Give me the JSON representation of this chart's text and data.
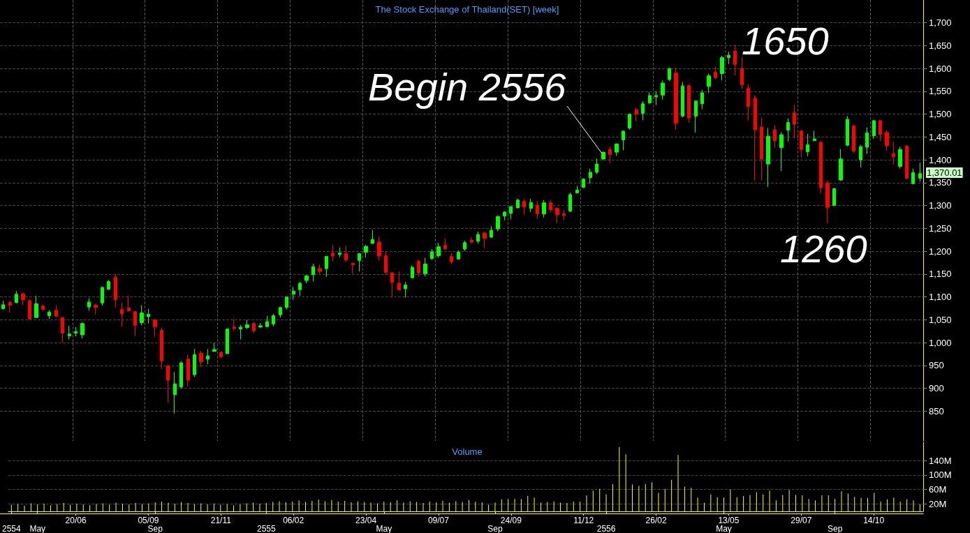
{
  "chart_data": [
    {
      "type": "candlestick",
      "title": "The Stock Exchange of Thailand(SET) [week]",
      "categories": [
        null,
        null,
        null,
        null,
        null,
        null,
        null,
        null,
        null,
        null,
        null,
        "20/06",
        null,
        null,
        null,
        null,
        null,
        null,
        null,
        null,
        null,
        null,
        "05/09",
        null,
        null,
        null,
        null,
        null,
        null,
        null,
        null,
        null,
        null,
        "21/11",
        null,
        null,
        null,
        null,
        null,
        null,
        null,
        null,
        null,
        null,
        "06/02",
        null,
        null,
        null,
        null,
        null,
        null,
        null,
        null,
        null,
        null,
        "23/04",
        null,
        null,
        null,
        null,
        null,
        null,
        null,
        null,
        null,
        null,
        "09/07",
        null,
        null,
        null,
        null,
        null,
        null,
        null,
        null,
        null,
        null,
        "24/09",
        null,
        null,
        null,
        null,
        null,
        null,
        null,
        null,
        null,
        null,
        "11/12",
        null,
        null,
        null,
        null,
        null,
        null,
        null,
        null,
        null,
        null,
        "26/02",
        null,
        null,
        null,
        null,
        null,
        null,
        null,
        null,
        null,
        null,
        "13/05",
        null,
        null,
        null,
        null,
        null,
        null,
        null,
        null,
        null,
        null,
        "29/07",
        null,
        null,
        null,
        null,
        null,
        null,
        null,
        null,
        null,
        null,
        "14/10",
        null,
        null,
        null,
        null,
        null,
        null,
        null
      ],
      "ohlc": [
        [
          1074,
          1092,
          1074,
          1083
        ],
        [
          1088,
          1091,
          1066,
          1082
        ],
        [
          1088,
          1113,
          1086,
          1106
        ],
        [
          1107,
          1109,
          1082,
          1094
        ],
        [
          1092,
          1095,
          1050,
          1052
        ],
        [
          1055,
          1103,
          1055,
          1085
        ],
        [
          1080,
          1083,
          1070,
          1073
        ],
        [
          1059,
          1071,
          1052,
          1067
        ],
        [
          1071,
          1082,
          1056,
          1058
        ],
        [
          1055,
          1056,
          1000,
          1021
        ],
        [
          1015,
          1037,
          1007,
          1019
        ],
        [
          1021,
          1034,
          1014,
          1024
        ],
        [
          1017,
          1044,
          1009,
          1042
        ],
        [
          1078,
          1097,
          1070,
          1089
        ],
        [
          1082,
          1085,
          1061,
          1077
        ],
        [
          1087,
          1122,
          1081,
          1121
        ],
        [
          1117,
          1137,
          1115,
          1134
        ],
        [
          1143,
          1149,
          1077,
          1094
        ],
        [
          1073,
          1088,
          1035,
          1063
        ],
        [
          1076,
          1103,
          1067,
          1070
        ],
        [
          1068,
          1070,
          1014,
          1038
        ],
        [
          1044,
          1082,
          1038,
          1065
        ],
        [
          1057,
          1074,
          1042,
          1062
        ],
        [
          1049,
          1052,
          1012,
          1035
        ],
        [
          1027,
          1033,
          942,
          960
        ],
        [
          949,
          950,
          868,
          918
        ],
        [
          886,
          936,
          845,
          910
        ],
        [
          903,
          959,
          899,
          956
        ],
        [
          964,
          974,
          904,
          918
        ],
        [
          930,
          986,
          925,
          974
        ],
        [
          977,
          982,
          946,
          958
        ],
        [
          964,
          986,
          953,
          971
        ],
        [
          981,
          1000,
          980,
          985
        ],
        [
          979,
          981,
          966,
          969
        ],
        [
          976,
          1031,
          975,
          1030
        ],
        [
          1034,
          1052,
          1026,
          1031
        ],
        [
          1030,
          1039,
          1007,
          1034
        ],
        [
          1033,
          1050,
          1030,
          1039
        ],
        [
          1042,
          1044,
          1021,
          1026
        ],
        [
          1034,
          1043,
          1033,
          1037
        ],
        [
          1035,
          1059,
          1034,
          1046
        ],
        [
          1041,
          1063,
          1036,
          1059
        ],
        [
          1061,
          1079,
          1055,
          1077
        ],
        [
          1077,
          1100,
          1073,
          1100
        ],
        [
          1106,
          1122,
          1094,
          1113
        ],
        [
          1116,
          1133,
          1103,
          1130
        ],
        [
          1136,
          1148,
          1130,
          1146
        ],
        [
          1149,
          1173,
          1134,
          1166
        ],
        [
          1162,
          1171,
          1150,
          1156
        ],
        [
          1162,
          1189,
          1144,
          1189
        ],
        [
          1196,
          1214,
          1178,
          1190
        ],
        [
          1193,
          1208,
          1187,
          1196
        ],
        [
          1195,
          1213,
          1177,
          1181
        ],
        [
          1174,
          1175,
          1151,
          1170
        ],
        [
          1180,
          1195,
          1156,
          1195
        ],
        [
          1198,
          1214,
          1186,
          1211
        ],
        [
          1217,
          1247,
          1217,
          1226
        ],
        [
          1220,
          1232,
          1180,
          1190
        ],
        [
          1190,
          1201,
          1148,
          1154
        ],
        [
          1153,
          1153,
          1100,
          1132
        ],
        [
          1130,
          1156,
          1115,
          1115
        ],
        [
          1118,
          1133,
          1099,
          1126
        ],
        [
          1142,
          1169,
          1142,
          1165
        ],
        [
          1178,
          1181,
          1144,
          1153
        ],
        [
          1151,
          1186,
          1145,
          1172
        ],
        [
          1184,
          1205,
          1181,
          1199
        ],
        [
          1190,
          1219,
          1186,
          1210
        ],
        [
          1213,
          1228,
          1204,
          1205
        ],
        [
          1189,
          1196,
          1172,
          1177
        ],
        [
          1183,
          1202,
          1183,
          1198
        ],
        [
          1205,
          1223,
          1201,
          1219
        ],
        [
          1224,
          1231,
          1217,
          1220
        ],
        [
          1222,
          1243,
          1217,
          1237
        ],
        [
          1240,
          1243,
          1207,
          1228
        ],
        [
          1231,
          1255,
          1229,
          1246
        ],
        [
          1249,
          1279,
          1244,
          1276
        ],
        [
          1277,
          1288,
          1268,
          1286
        ],
        [
          1283,
          1298,
          1270,
          1298
        ],
        [
          1295,
          1315,
          1295,
          1312
        ],
        [
          1309,
          1315,
          1280,
          1297
        ],
        [
          1294,
          1315,
          1286,
          1307
        ],
        [
          1301,
          1310,
          1271,
          1282
        ],
        [
          1282,
          1312,
          1274,
          1306
        ],
        [
          1307,
          1313,
          1285,
          1291
        ],
        [
          1294,
          1297,
          1262,
          1280
        ],
        [
          1282,
          1291,
          1268,
          1279
        ],
        [
          1288,
          1328,
          1286,
          1324
        ],
        [
          1328,
          1343,
          1327,
          1334
        ],
        [
          1340,
          1360,
          1339,
          1358
        ],
        [
          1361,
          1381,
          1348,
          1373
        ],
        [
          1373,
          1403,
          1369,
          1391
        ],
        [
          1402,
          1417,
          1400,
          1417
        ],
        [
          1423,
          1429,
          1393,
          1412
        ],
        [
          1417,
          1436,
          1409,
          1435
        ],
        [
          1444,
          1464,
          1421,
          1463
        ],
        [
          1470,
          1500,
          1466,
          1500
        ],
        [
          1510,
          1514,
          1484,
          1500
        ],
        [
          1502,
          1529,
          1487,
          1523
        ],
        [
          1525,
          1548,
          1522,
          1541
        ],
        [
          1538,
          1551,
          1520,
          1541
        ],
        [
          1542,
          1574,
          1532,
          1568
        ],
        [
          1576,
          1601,
          1573,
          1600
        ],
        [
          1590,
          1602,
          1466,
          1480
        ],
        [
          1496,
          1571,
          1493,
          1562
        ],
        [
          1563,
          1565,
          1481,
          1492
        ],
        [
          1496,
          1530,
          1460,
          1529
        ],
        [
          1523,
          1553,
          1511,
          1547
        ],
        [
          1561,
          1589,
          1547,
          1584
        ],
        [
          1592,
          1604,
          1577,
          1580
        ],
        [
          1589,
          1628,
          1574,
          1624
        ],
        [
          1624,
          1637,
          1610,
          1629
        ],
        [
          1638,
          1652,
          1585,
          1609
        ],
        [
          1600,
          1626,
          1556,
          1564
        ],
        [
          1557,
          1566,
          1486,
          1517
        ],
        [
          1535,
          1541,
          1354,
          1466
        ],
        [
          1472,
          1493,
          1355,
          1402
        ],
        [
          1391,
          1470,
          1341,
          1452
        ],
        [
          1466,
          1476,
          1426,
          1442
        ],
        [
          1427,
          1461,
          1376,
          1455
        ],
        [
          1465,
          1491,
          1440,
          1482
        ],
        [
          1503,
          1520,
          1447,
          1478
        ],
        [
          1463,
          1466,
          1405,
          1423
        ],
        [
          1418,
          1457,
          1408,
          1433
        ],
        [
          1442,
          1464,
          1442,
          1446
        ],
        [
          1439,
          1440,
          1327,
          1339
        ],
        [
          1349,
          1355,
          1261,
          1296
        ],
        [
          1300,
          1339,
          1300,
          1337
        ],
        [
          1356,
          1424,
          1354,
          1402
        ],
        [
          1432,
          1496,
          1430,
          1489
        ],
        [
          1475,
          1475,
          1416,
          1419
        ],
        [
          1400,
          1433,
          1383,
          1429
        ],
        [
          1428,
          1471,
          1413,
          1459
        ],
        [
          1453,
          1487,
          1446,
          1486
        ],
        [
          1486,
          1487,
          1441,
          1456
        ],
        [
          1460,
          1465,
          1420,
          1431
        ],
        [
          1414,
          1440,
          1390,
          1407
        ],
        [
          1386,
          1429,
          1381,
          1423
        ],
        [
          1430,
          1432,
          1357,
          1360
        ],
        [
          1348,
          1381,
          1347,
          1372
        ],
        [
          1360,
          1394,
          1353,
          1370.01
        ]
      ],
      "ylim": [
        785,
        1750
      ],
      "yticks": [
        850,
        900,
        950,
        {
          "value": 1000,
          "label": "1,000"
        },
        {
          "value": 1050,
          "label": "1,050"
        },
        {
          "value": 1100,
          "label": "1,100"
        },
        {
          "value": 1150,
          "label": "1,150"
        },
        {
          "value": 1200,
          "label": "1,200"
        },
        {
          "value": 1250,
          "label": "1,250"
        },
        {
          "value": 1300,
          "label": "1,300"
        },
        {
          "value": 1350,
          "label": "1,350"
        },
        {
          "value": 1400,
          "label": "1,400"
        },
        {
          "value": 1450,
          "label": "1,450"
        },
        {
          "value": 1500,
          "label": "1,500"
        },
        {
          "value": 1550,
          "label": "1,550"
        },
        {
          "value": 1600,
          "label": "1,600"
        },
        {
          "value": 1650,
          "label": "1,650"
        },
        {
          "value": 1700,
          "label": "1,700"
        }
      ],
      "annotations": [
        "Begin 2556",
        "1650",
        "1260",
        "1,370.01"
      ],
      "grid": true
    },
    {
      "type": "bar",
      "title": "Volume",
      "categories": [
        "2554",
        null,
        null,
        null,
        "May",
        null,
        null,
        null,
        null,
        null,
        null,
        null,
        null,
        null,
        null,
        null,
        null,
        null,
        null,
        null,
        null,
        null,
        "Sep",
        null,
        null,
        null,
        null,
        null,
        null,
        null,
        null,
        null,
        null,
        null,
        null,
        null,
        null,
        null,
        null,
        "2555",
        null,
        null,
        null,
        null,
        null,
        null,
        null,
        null,
        null,
        null,
        null,
        null,
        null,
        null,
        null,
        null,
        null,
        "May",
        null,
        null,
        null,
        null,
        null,
        null,
        null,
        null,
        null,
        null,
        null,
        null,
        null,
        null,
        null,
        null,
        "Sep",
        null,
        null,
        null,
        null,
        null,
        null,
        null,
        null,
        null,
        null,
        null,
        null,
        null,
        null,
        null,
        null,
        "2556",
        null,
        null,
        null,
        null,
        null,
        null,
        null,
        null,
        null,
        null,
        null,
        null,
        null,
        null,
        null,
        null,
        null,
        "May",
        null,
        null,
        null,
        null,
        null,
        null,
        null,
        null,
        null,
        null,
        null,
        null,
        null,
        null,
        null,
        null,
        "Sep",
        null,
        null,
        null,
        null,
        null,
        null,
        null,
        null,
        null,
        null,
        null,
        null,
        null
      ],
      "values": [
        18,
        20,
        16,
        22,
        19,
        21,
        17,
        20,
        23,
        18,
        21,
        19,
        17,
        20,
        22,
        18,
        24,
        21,
        19,
        23,
        20,
        22,
        25,
        27,
        24,
        21,
        26,
        23,
        20,
        22,
        19,
        21,
        18,
        20,
        17,
        19,
        22,
        24,
        21,
        23,
        26,
        28,
        25,
        27,
        30,
        26,
        29,
        32,
        28,
        31,
        27,
        29,
        25,
        28,
        26,
        24,
        22,
        27,
        25,
        30,
        24,
        28,
        26,
        23,
        27,
        25,
        29,
        24,
        28,
        26,
        31,
        27,
        25,
        18,
        24,
        33,
        34,
        34,
        34,
        42,
        38,
        24,
        26,
        28,
        24,
        23,
        27,
        27,
        44,
        57,
        62,
        47,
        75,
        177,
        157,
        74,
        70,
        75,
        80,
        51,
        62,
        87,
        155,
        68,
        65,
        38,
        24,
        47,
        39,
        38,
        60,
        39,
        42,
        45,
        53,
        47,
        57,
        30,
        45,
        59,
        45,
        44,
        34,
        30,
        44,
        44,
        34,
        55,
        49,
        40,
        37,
        37,
        51,
        27,
        33,
        38,
        27,
        33,
        30,
        19
      ],
      "color": "#ffff00",
      "ylim": [
        0,
        190
      ],
      "yticks": [
        {
          "value": 20,
          "label": "20M"
        },
        {
          "value": 60,
          "label": "60M"
        },
        {
          "value": 100,
          "label": "100M"
        },
        {
          "value": 140,
          "label": "140M"
        }
      ],
      "grid": "y"
    }
  ]
}
